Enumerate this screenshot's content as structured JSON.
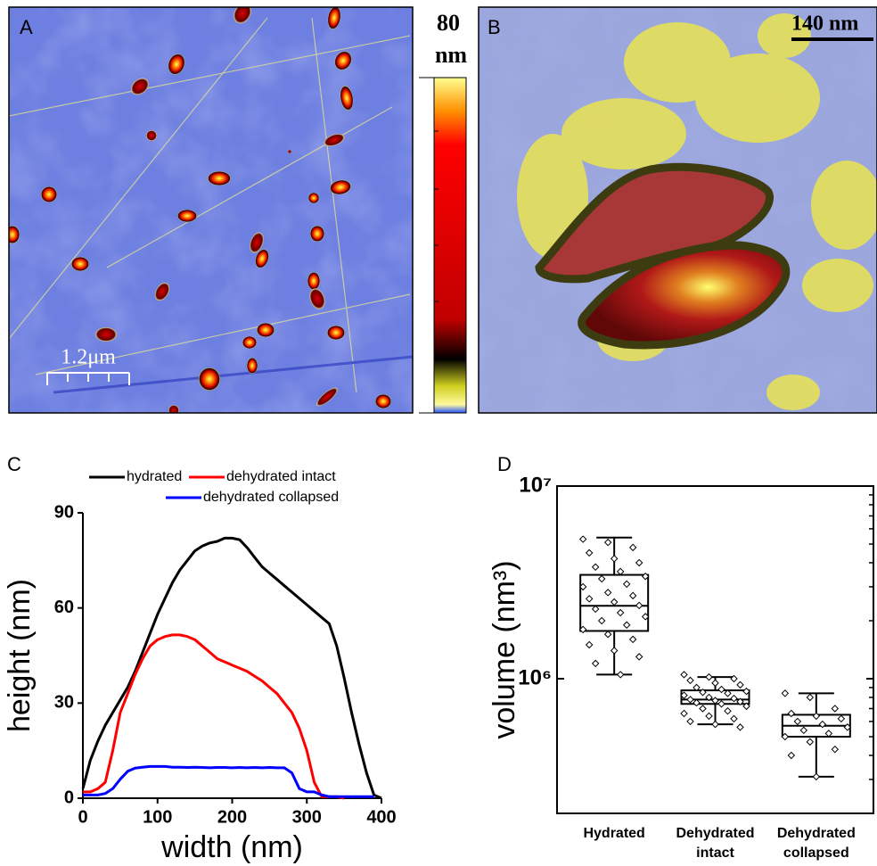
{
  "panels": {
    "A": {
      "label": "A",
      "scale_bar": "1.2μm"
    },
    "colorbar": {
      "max": 80,
      "unit": "nm"
    },
    "B": {
      "label": "B",
      "scale_bar": "140 nm"
    }
  },
  "chart_data": [
    {
      "type": "line",
      "panel_label": "C",
      "xlabel": "width (nm)",
      "ylabel": "height (nm)",
      "xlim": [
        0,
        400
      ],
      "xticks": [
        0,
        100,
        200,
        300,
        400
      ],
      "ylim": [
        0,
        90
      ],
      "yticks": [
        0,
        30,
        60,
        90
      ],
      "legend": "top",
      "x": [
        0,
        10,
        20,
        30,
        40,
        50,
        60,
        70,
        80,
        90,
        100,
        110,
        120,
        130,
        140,
        150,
        160,
        170,
        180,
        190,
        200,
        210,
        220,
        230,
        240,
        250,
        260,
        270,
        280,
        290,
        300,
        310,
        320,
        330,
        340,
        350,
        360,
        370,
        380,
        390,
        400
      ],
      "series": [
        {
          "name": "hydrated",
          "color": "#000000",
          "values": [
            3,
            12,
            18,
            23,
            27,
            31,
            35,
            40,
            46,
            52,
            58,
            63,
            68,
            72,
            75,
            78,
            79.5,
            80.5,
            81,
            82,
            82,
            81.5,
            79,
            76,
            73,
            71,
            69,
            67,
            65,
            63,
            61,
            59,
            57,
            55,
            48,
            38,
            27,
            17,
            8,
            1,
            0
          ]
        },
        {
          "name": "dehydrated intact",
          "color": "#ff0000",
          "values": [
            2,
            2,
            3,
            5,
            15,
            27,
            33,
            39,
            44,
            48,
            50,
            51,
            51.5,
            51.5,
            51,
            50,
            48,
            46,
            44,
            43,
            42,
            41,
            40,
            38.5,
            37,
            35,
            33,
            30,
            27,
            22,
            15,
            5,
            0.5,
            0.5,
            0.5,
            0,
            null,
            null,
            null,
            null,
            null
          ]
        },
        {
          "name": "dehydrated collapsed",
          "color": "#0000ff",
          "values": [
            1,
            1,
            1,
            1.5,
            3,
            6,
            8.5,
            9.5,
            9.8,
            10,
            10,
            10,
            9.8,
            9.8,
            9.7,
            9.8,
            9.7,
            9.6,
            9.7,
            9.7,
            9.6,
            9.7,
            9.6,
            9.7,
            9.6,
            9.7,
            9.6,
            9.6,
            8,
            3,
            2,
            2,
            1,
            0.5,
            0.5,
            0.5,
            0.5,
            0.5,
            0.5,
            0.5,
            null
          ]
        }
      ]
    },
    {
      "type": "box",
      "panel_label": "D",
      "ylabel": "volume (nm³)",
      "log_scale": true,
      "color": "#000000",
      "ylim": [
        200000,
        10000000
      ],
      "yticks": [
        {
          "value": 1000000,
          "label": "10⁶"
        },
        {
          "value": 10000000,
          "label": "10⁷"
        }
      ],
      "yticks_minor": [
        300000,
        400000,
        500000,
        600000,
        700000,
        800000,
        900000,
        2000000,
        3000000,
        4000000,
        5000000,
        6000000,
        7000000,
        8000000,
        9000000
      ],
      "categories": [
        "Hydrated",
        "Dehydrated intact",
        "Dehydrated collapsed"
      ],
      "boxes": [
        {
          "whisker_low": 1050000,
          "q1": 1770000,
          "median": 2390000,
          "q3": 3460000,
          "whisker_high": 5400000,
          "points": [
            5300000,
            5100000,
            4800000,
            4500000,
            4200000,
            4000000,
            3800000,
            3600000,
            3400000,
            3300000,
            3100000,
            3000000,
            2800000,
            2700000,
            2600000,
            2500000,
            2400000,
            2300000,
            2200000,
            2100000,
            2000000,
            1900000,
            1800000,
            1700000,
            1600000,
            1500000,
            1400000,
            1300000,
            1200000,
            1050000
          ]
        },
        {
          "whisker_low": 580000,
          "q1": 740000,
          "median": 780000,
          "q3": 870000,
          "whisker_high": 1020000,
          "points": [
            1050000,
            1020000,
            1000000,
            980000,
            950000,
            930000,
            900000,
            880000,
            860000,
            850000,
            840000,
            820000,
            800000,
            790000,
            780000,
            770000,
            760000,
            750000,
            740000,
            720000,
            700000,
            680000,
            660000,
            640000,
            620000,
            600000,
            580000,
            560000
          ]
        },
        {
          "whisker_low": 310000,
          "q1": 500000,
          "median": 570000,
          "q3": 650000,
          "whisker_high": 840000,
          "points": [
            840000,
            800000,
            700000,
            660000,
            640000,
            620000,
            600000,
            580000,
            560000,
            540000,
            520000,
            500000,
            470000,
            430000,
            400000,
            310000
          ]
        }
      ]
    }
  ]
}
